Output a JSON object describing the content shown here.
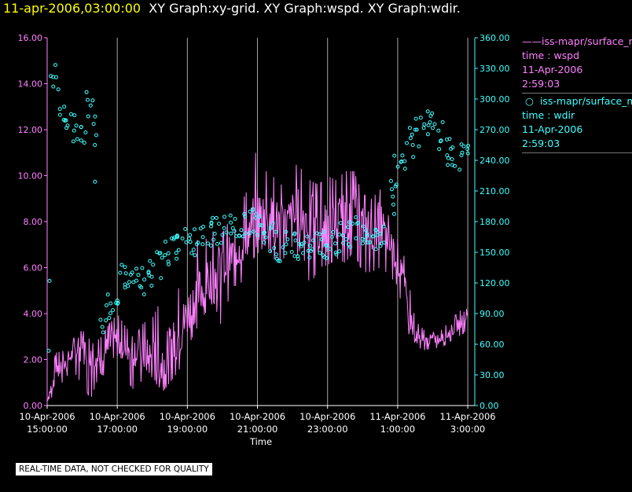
{
  "title": {
    "timestamp": "11-apr-2006,03:00:00",
    "text": "XY Graph:xy-grid.  XY Graph:wspd.  XY Graph:wdir."
  },
  "legend": {
    "series1": {
      "label": "iss-mapr/surface_m",
      "var": "time : wspd",
      "date": "11-Apr-2006",
      "time": "2:59:03",
      "color": "#ff80ff"
    },
    "series2": {
      "label": "iss-mapr/surface_m",
      "var": "time : wdir",
      "date": "11-Apr-2006",
      "time": "2:59:03",
      "color": "#40ffff"
    }
  },
  "disclaimer": "REAL-TIME DATA, NOT CHECKED FOR QUALITY",
  "chart_data": {
    "type": "line",
    "xlabel": "Time",
    "x_range_hours": [
      15.0,
      27.2
    ],
    "x_ticks": [
      {
        "date": "10-Apr-2006",
        "time": "15:00:00"
      },
      {
        "date": "10-Apr-2006",
        "time": "17:00:00"
      },
      {
        "date": "10-Apr-2006",
        "time": "19:00:00"
      },
      {
        "date": "10-Apr-2006",
        "time": "21:00:00"
      },
      {
        "date": "10-Apr-2006",
        "time": "23:00:00"
      },
      {
        "date": "11-Apr-2006",
        "time": "1:00:00"
      },
      {
        "date": "11-Apr-2006",
        "time": "3:00:00"
      }
    ],
    "y_left": {
      "min": 0,
      "max": 16,
      "ticks": [
        "0.00",
        "2.00",
        "4.00",
        "6.00",
        "8.00",
        "10.00",
        "12.00",
        "14.00",
        "16.00"
      ],
      "color": "#ff80ff"
    },
    "y_right": {
      "min": 0,
      "max": 360,
      "ticks": [
        "0.00",
        "30.00",
        "60.00",
        "90.00",
        "120.00",
        "150.00",
        "180.00",
        "210.00",
        "240.00",
        "270.00",
        "300.00",
        "330.00",
        "360.00"
      ],
      "color": "#40ffff"
    },
    "grid": "vertical",
    "series": [
      {
        "name": "time : wspd",
        "style": "line",
        "axis": "left",
        "color": "#ff80ff",
        "x": [
          15.0,
          15.25,
          15.5,
          15.75,
          16.0,
          16.25,
          16.5,
          16.75,
          17.0,
          17.25,
          17.5,
          17.75,
          18.0,
          18.25,
          18.5,
          18.75,
          19.0,
          19.25,
          19.5,
          19.75,
          20.0,
          20.25,
          20.5,
          20.75,
          21.0,
          21.25,
          21.5,
          21.75,
          22.0,
          22.25,
          22.5,
          22.75,
          23.0,
          23.25,
          23.5,
          23.75,
          24.0,
          24.25,
          24.5,
          24.75,
          25.0,
          25.25,
          25.5,
          25.75,
          26.0,
          26.25,
          26.5,
          26.75,
          27.0
        ],
        "y": [
          0.2,
          1.5,
          1.8,
          2.3,
          2.5,
          2.4,
          2.0,
          2.5,
          2.8,
          2.6,
          2.4,
          2.2,
          2.0,
          1.8,
          2.6,
          3.0,
          4.0,
          4.8,
          5.2,
          5.8,
          6.0,
          6.5,
          7.0,
          7.5,
          8.2,
          8.3,
          8.0,
          7.8,
          8.0,
          8.5,
          8.0,
          7.5,
          7.8,
          8.0,
          8.2,
          8.5,
          7.8,
          7.6,
          8.0,
          7.0,
          6.5,
          4.5,
          3.0,
          2.8,
          2.9,
          2.9,
          3.2,
          3.6,
          4.0
        ],
        "min": [
          0.2,
          0.5,
          1.2,
          1.5,
          0.9,
          0.3,
          1.4,
          1.2,
          1.6,
          1.2,
          0.6,
          1.2,
          0.6,
          0.5,
          1.0,
          1.5,
          2.5,
          3.3,
          4.0,
          4.5,
          3.3,
          5.2,
          5.2,
          6.2,
          6.6,
          7.0,
          6.3,
          6.4,
          6.0,
          6.9,
          5.2,
          6.0,
          6.1,
          6.4,
          6.2,
          6.7,
          5.8,
          5.8,
          6.0,
          5.7,
          5.2,
          3.3,
          2.6,
          2.4,
          2.5,
          2.5,
          2.8,
          3.0,
          3.3
        ],
        "max": [
          0.7,
          2.3,
          2.4,
          2.9,
          3.3,
          2.8,
          2.9,
          3.5,
          4.0,
          3.4,
          3.0,
          3.6,
          3.8,
          4.6,
          3.8,
          5.1,
          6.0,
          7.2,
          7.2,
          7.6,
          7.5,
          8.2,
          8.7,
          9.5,
          11.4,
          10.2,
          9.9,
          9.5,
          10.6,
          10.3,
          9.8,
          9.6,
          10.0,
          9.8,
          10.2,
          10.2,
          9.2,
          9.0,
          9.4,
          8.2,
          7.8,
          6.0,
          3.7,
          3.3,
          3.2,
          3.3,
          3.7,
          4.1,
          4.3
        ]
      },
      {
        "name": "time : wdir",
        "style": "scatter",
        "axis": "right",
        "color": "#40ffff",
        "x": [
          15.0,
          15.2,
          15.4,
          15.6,
          15.8,
          16.0,
          16.2,
          16.4,
          16.6,
          16.8,
          17.0,
          17.2,
          17.4,
          17.6,
          17.8,
          18.0,
          18.2,
          18.4,
          18.6,
          18.8,
          19.0,
          19.2,
          19.4,
          19.6,
          19.8,
          20.0,
          20.2,
          20.4,
          20.6,
          20.8,
          21.0,
          21.2,
          21.4,
          21.6,
          21.8,
          22.0,
          22.2,
          22.4,
          22.6,
          22.8,
          23.0,
          23.2,
          23.4,
          23.6,
          23.8,
          24.0,
          24.2,
          24.4,
          24.6,
          24.8,
          25.0,
          25.2,
          25.4,
          25.6,
          25.8,
          26.0,
          26.2,
          26.4,
          26.6,
          26.8,
          27.0
        ],
        "y": [
          10.0,
          325.0,
          295.0,
          280.0,
          272.0,
          266.0,
          285.0,
          330.0,
          80.0,
          95.0,
          110.0,
          125.0,
          132.0,
          130.0,
          122.0,
          118.0,
          138.0,
          150.0,
          155.0,
          160.0,
          165.0,
          162.0,
          160.0,
          168.0,
          170.0,
          172.0,
          175.0,
          178.0,
          180.0,
          178.0,
          182.0,
          176.0,
          165.0,
          155.0,
          160.0,
          162.0,
          158.0,
          160.0,
          155.0,
          156.0,
          158.0,
          162.0,
          165.0,
          168.0,
          170.0,
          168.0,
          165.0,
          158.0,
          155.0,
          200.0,
          225.0,
          240.0,
          252.0,
          268.0,
          275.0,
          272.0,
          268.0,
          248.0,
          244.0,
          242.0,
          250.0
        ]
      }
    ]
  }
}
